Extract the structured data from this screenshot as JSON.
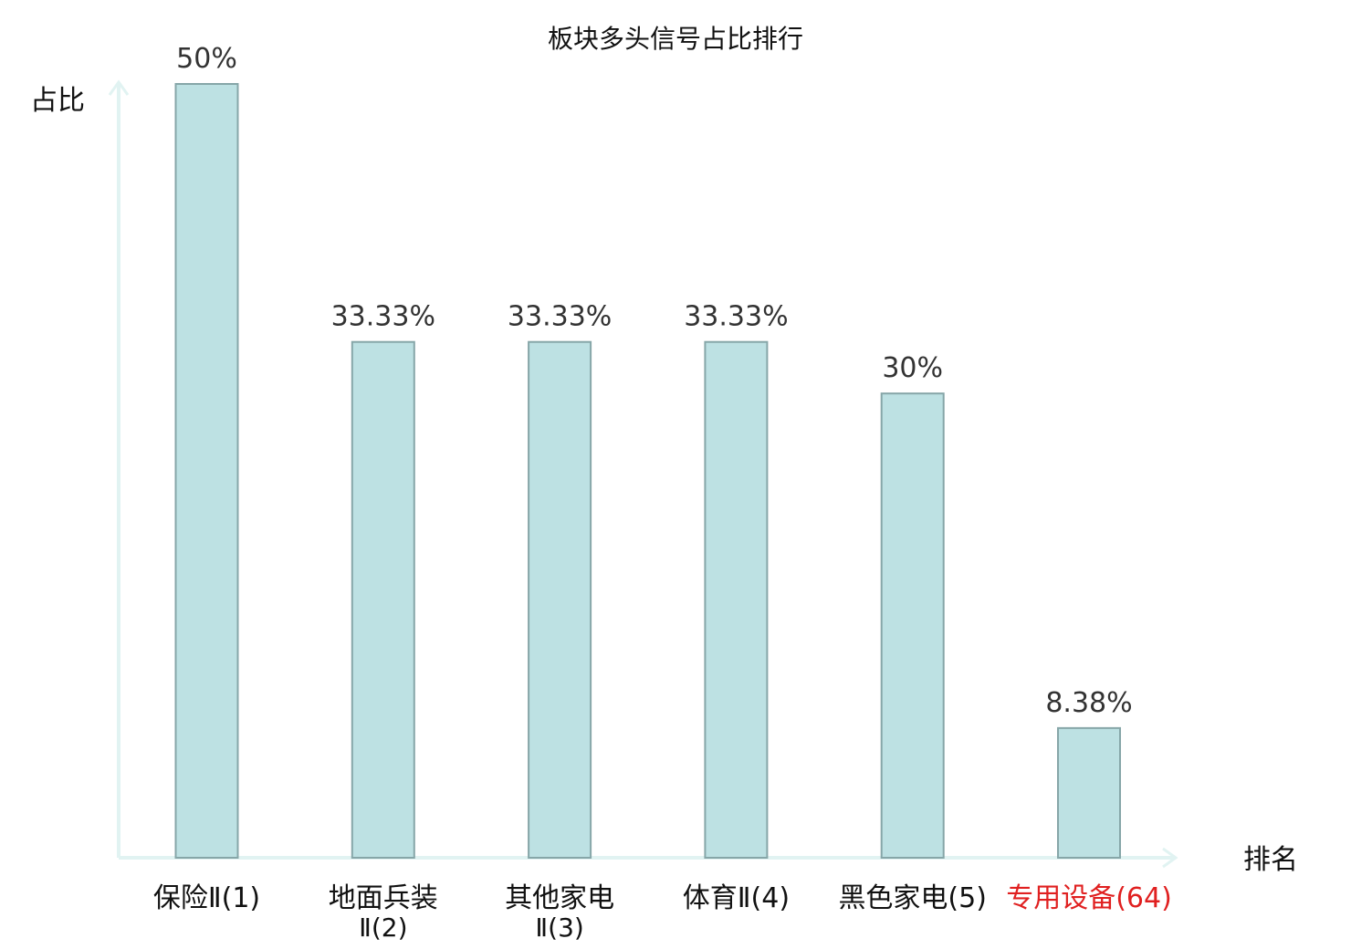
{
  "chart_data": {
    "type": "bar",
    "title": "板块多头信号占比排行",
    "xlabel": "排名",
    "ylabel": "占比",
    "ylim": [
      0,
      50
    ],
    "grid": false,
    "categories": [
      {
        "name": "保险Ⅱ",
        "rank": "(1)",
        "label_lines": [
          "保险Ⅱ(1)"
        ],
        "highlight": false
      },
      {
        "name": "地面兵装Ⅱ",
        "rank": "(2)",
        "label_lines": [
          "地面兵装",
          "Ⅱ(2)"
        ],
        "highlight": false
      },
      {
        "name": "其他家电Ⅱ",
        "rank": "(3)",
        "label_lines": [
          "其他家电",
          "Ⅱ(3)"
        ],
        "highlight": false
      },
      {
        "name": "体育Ⅱ",
        "rank": "(4)",
        "label_lines": [
          "体育Ⅱ(4)"
        ],
        "highlight": false
      },
      {
        "name": "黑色家电",
        "rank": "(5)",
        "label_lines": [
          "黑色家电(5)"
        ],
        "highlight": false
      },
      {
        "name": "专用设备",
        "rank": "(64)",
        "label_lines": [
          "专用设备(64)"
        ],
        "highlight": true
      }
    ],
    "values": [
      50,
      33.33,
      33.33,
      33.33,
      30,
      8.38
    ],
    "value_labels": [
      "50%",
      "33.33%",
      "33.33%",
      "33.33%",
      "30%",
      "8.38%"
    ],
    "colors": {
      "bar_fill": "#bde1e3",
      "bar_stroke": "#86a6a8",
      "axis": "#e1f3f2",
      "text": "#111111",
      "value_text": "#333333",
      "highlight_text": "#e02020"
    }
  }
}
